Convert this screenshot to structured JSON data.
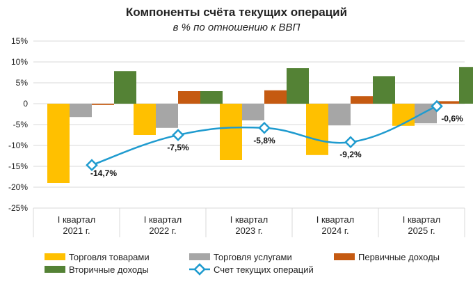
{
  "chart_data": {
    "type": "bar",
    "title": "Компоненты счёта текущих операций",
    "subtitle": "в % по отношению к ВВП",
    "categories": [
      [
        "I квартал",
        "2021 г."
      ],
      [
        "I квартал",
        "2022 г."
      ],
      [
        "I квартал",
        "2023 г."
      ],
      [
        "I квартал",
        "2024 г."
      ],
      [
        "I квартал",
        "2025 г."
      ]
    ],
    "ylim": [
      -25,
      15
    ],
    "yticks": [
      15,
      10,
      5,
      0,
      -5,
      -10,
      -15,
      -20,
      -25
    ],
    "ytick_labels": [
      "15%",
      "10%",
      "5%",
      "0",
      "-5%",
      "-10%",
      "-15%",
      "-20%",
      "-25%"
    ],
    "grid": true,
    "legend_position": "bottom",
    "series": [
      {
        "name": "Торговля товарами",
        "type": "bar",
        "color": "#FFC000",
        "values": [
          -19.0,
          -7.5,
          -13.5,
          -12.3,
          -5.3
        ]
      },
      {
        "name": "Торговля услугами",
        "type": "bar",
        "color": "#A6A6A6",
        "values": [
          -3.2,
          -5.8,
          -4.0,
          -5.2,
          -4.7
        ]
      },
      {
        "name": "Первичные доходы",
        "type": "bar",
        "color": "#C55A11",
        "values": [
          -0.3,
          3.0,
          3.2,
          1.8,
          0.6
        ]
      },
      {
        "name": "Вторичные доходы",
        "type": "bar",
        "color": "#548235",
        "values": [
          7.8,
          3.0,
          8.5,
          6.6,
          8.8
        ]
      },
      {
        "name": "Счет текущих операций",
        "type": "line",
        "color": "#1F9BCF",
        "values": [
          -14.7,
          -7.5,
          -5.8,
          -9.2,
          -0.6
        ],
        "labels": [
          "-14,7%",
          "-7,5%",
          "-5,8%",
          "-9,2%",
          "-0,6%"
        ]
      }
    ]
  }
}
